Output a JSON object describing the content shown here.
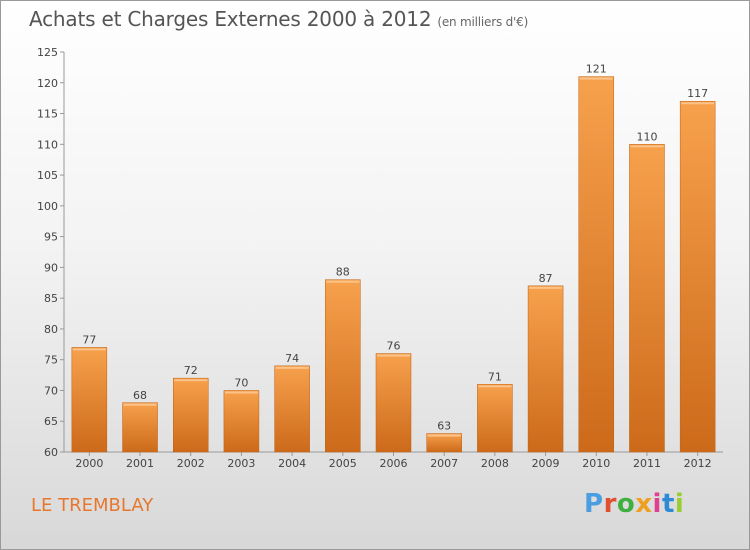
{
  "chart_data": {
    "type": "bar",
    "title": "Achats et Charges Externes 2000 à 2012",
    "subtitle": "(en milliers d'€)",
    "categories": [
      "2000",
      "2001",
      "2002",
      "2003",
      "2004",
      "2005",
      "2006",
      "2007",
      "2008",
      "2009",
      "2010",
      "2011",
      "2012"
    ],
    "values": [
      77,
      68,
      72,
      70,
      74,
      88,
      76,
      63,
      71,
      87,
      121,
      110,
      117
    ],
    "ylim": [
      60,
      125
    ],
    "yticks": [
      60,
      65,
      70,
      75,
      80,
      85,
      90,
      95,
      100,
      105,
      110,
      115,
      120,
      125
    ],
    "grid": false,
    "bar_color_light": "#f7a14d",
    "bar_color_dark": "#cc6a1a"
  },
  "footer": {
    "place": "LE TREMBLAY",
    "logo": "Proxiti",
    "logo_colors": [
      "#4a9de0",
      "#e05030",
      "#3fb040",
      "#f0a020",
      "#e04090",
      "#2f8ad6",
      "#9acd32"
    ]
  }
}
